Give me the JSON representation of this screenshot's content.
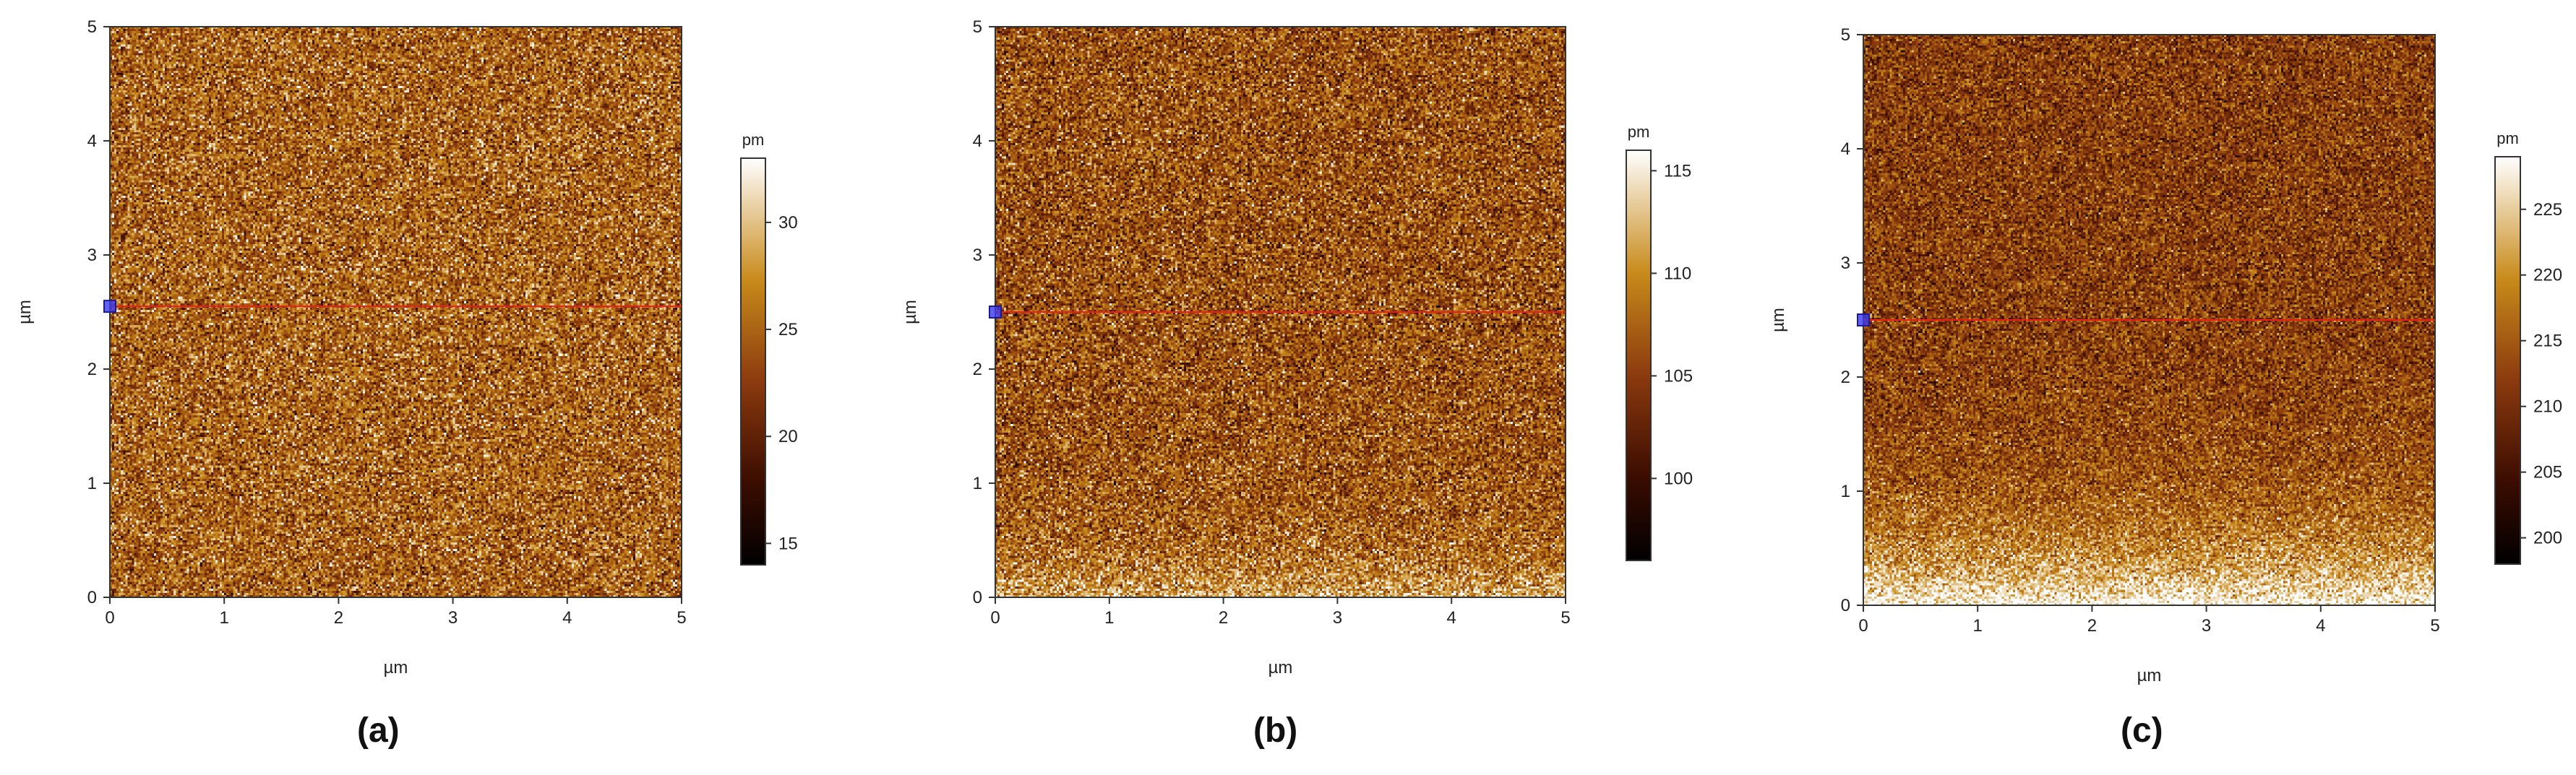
{
  "chart_data": [
    {
      "type": "heatmap",
      "panel_label": "(a)",
      "xlabel": "µm",
      "ylabel": "µm",
      "xlim": [
        0,
        5
      ],
      "ylim": [
        0,
        5
      ],
      "xticks": [
        "0",
        "1",
        "2",
        "3",
        "4",
        "5"
      ],
      "yticks": [
        "0",
        "1",
        "2",
        "3",
        "4",
        "5"
      ],
      "colorbar": {
        "unit": "pm",
        "range": [
          14,
          33
        ],
        "ticks": [
          15,
          20,
          25,
          30
        ]
      },
      "profile_line_y": 2.55,
      "texture": "uniform",
      "colors": {
        "low": "#000000",
        "mid1": "#3a0c00",
        "mid2": "#8b3a0e",
        "mid3": "#c88a1a",
        "high": "#ffffff",
        "line": "#e8201a",
        "marker": "#3a3af0"
      }
    },
    {
      "type": "heatmap",
      "panel_label": "(b)",
      "xlabel": "µm",
      "ylabel": "µm",
      "xlim": [
        0,
        5
      ],
      "ylim": [
        0,
        5
      ],
      "xticks": [
        "0",
        "1",
        "2",
        "3",
        "4",
        "5"
      ],
      "yticks": [
        "0",
        "1",
        "2",
        "3",
        "4",
        "5"
      ],
      "colorbar": {
        "unit": "pm",
        "range": [
          96,
          116
        ],
        "ticks": [
          100,
          105,
          110,
          115
        ]
      },
      "profile_line_y": 2.5,
      "texture": "bright-bottom",
      "colors": {
        "low": "#000000",
        "mid1": "#3a0c00",
        "mid2": "#8b3a0e",
        "mid3": "#c88a1a",
        "high": "#ffffff",
        "line": "#e8201a",
        "marker": "#3a3af0"
      }
    },
    {
      "type": "heatmap",
      "panel_label": "(c)",
      "xlabel": "µm",
      "ylabel": "µm",
      "xlim": [
        0,
        5
      ],
      "ylim": [
        0,
        5
      ],
      "xticks": [
        "0",
        "1",
        "2",
        "3",
        "4",
        "5"
      ],
      "yticks": [
        "0",
        "1",
        "2",
        "3",
        "4",
        "5"
      ],
      "colorbar": {
        "unit": "pm",
        "range": [
          198,
          229
        ],
        "ticks": [
          200,
          205,
          210,
          215,
          220,
          225
        ]
      },
      "profile_line_y": 2.5,
      "texture": "strong-gradient",
      "colors": {
        "low": "#000000",
        "mid1": "#3a0c00",
        "mid2": "#8b3a0e",
        "mid3": "#c88a1a",
        "high": "#ffffff",
        "line": "#e8201a",
        "marker": "#3a3af0"
      }
    }
  ]
}
